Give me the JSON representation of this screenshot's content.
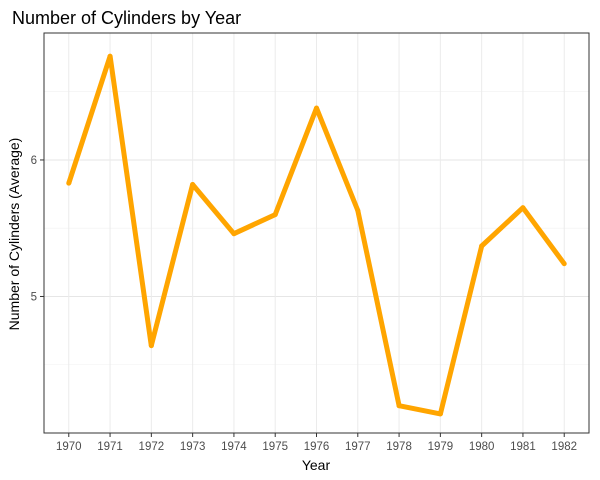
{
  "chart_data": {
    "type": "line",
    "title": "Number of Cylinders by Year",
    "xlabel": "Year",
    "ylabel": "Number of Cylinders (Average)",
    "x": [
      1970,
      1971,
      1972,
      1973,
      1974,
      1975,
      1976,
      1977,
      1978,
      1979,
      1980,
      1981,
      1982
    ],
    "series": [
      {
        "values": [
          5.83,
          6.76,
          4.64,
          5.82,
          5.46,
          5.6,
          6.38,
          5.63,
          4.2,
          4.14,
          5.37,
          5.65,
          5.24
        ]
      }
    ],
    "ylim": [
      4.0,
      6.93
    ],
    "y_ticks": [
      5,
      6
    ],
    "grid": true,
    "line_color": "#FFA500"
  }
}
